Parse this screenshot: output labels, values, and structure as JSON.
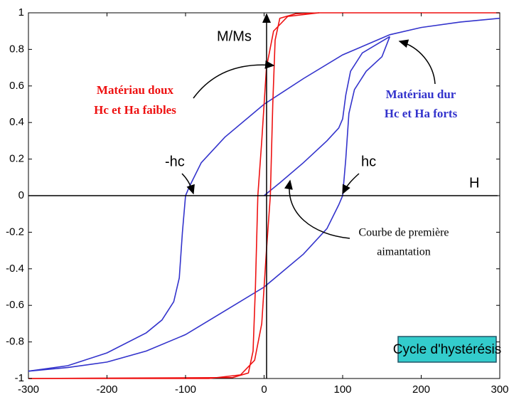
{
  "chart_data": {
    "type": "line",
    "xlim": [
      -300,
      300
    ],
    "ylim": [
      -1,
      1
    ],
    "xticks": [
      -300,
      -200,
      -100,
      0,
      100,
      200,
      300
    ],
    "yticks": [
      -1,
      -0.8,
      -0.6,
      -0.4,
      -0.2,
      0,
      0.2,
      0.4,
      0.6,
      0.8,
      1
    ],
    "series": [
      {
        "color": "#3333cc",
        "x": [
          300,
          250,
          200,
          160,
          100,
          50,
          0,
          -50,
          -80,
          -95,
          -100,
          -104,
          -108,
          -115,
          -130,
          -150,
          -200,
          -250,
          -300
        ],
        "values": [
          0.97,
          0.95,
          0.92,
          0.88,
          0.77,
          0.64,
          0.5,
          0.32,
          0.18,
          0.05,
          0,
          -0.2,
          -0.45,
          -0.58,
          -0.68,
          -0.75,
          -0.86,
          -0.93,
          -0.96
        ]
      },
      {
        "color": "#3333cc",
        "x": [
          -300,
          -250,
          -200,
          -150,
          -100,
          -50,
          0,
          50,
          80,
          95,
          100,
          104,
          108,
          115,
          130,
          150,
          160
        ],
        "values": [
          -0.96,
          -0.94,
          -0.91,
          -0.85,
          -0.76,
          -0.63,
          -0.5,
          -0.32,
          -0.18,
          -0.05,
          0,
          0.2,
          0.45,
          0.58,
          0.68,
          0.76,
          0.87
        ]
      },
      {
        "color": "#3333cc",
        "x": [
          0,
          20,
          50,
          80,
          95,
          100,
          104,
          110,
          125,
          160
        ],
        "values": [
          0,
          0.07,
          0.18,
          0.3,
          0.37,
          0.42,
          0.55,
          0.68,
          0.78,
          0.87
        ]
      },
      {
        "color": "#ee1111",
        "x": [
          300,
          70,
          30,
          12,
          3,
          -3,
          -8,
          -11,
          -14,
          -20,
          -40,
          -300
        ],
        "values": [
          1,
          1,
          0.98,
          0.9,
          0.7,
          0.3,
          0,
          -0.5,
          -0.85,
          -0.97,
          -0.995,
          -1
        ]
      },
      {
        "color": "#ee1111",
        "x": [
          -300,
          -70,
          -30,
          -12,
          -3,
          3,
          8,
          11,
          14,
          20,
          40,
          70
        ],
        "values": [
          -1,
          -1,
          -0.98,
          -0.9,
          -0.7,
          -0.3,
          0,
          0.5,
          0.85,
          0.97,
          0.995,
          1
        ]
      }
    ],
    "annotations": [
      "M/Ms",
      "H",
      "Matériau doux",
      "Hc et Ha faibles",
      "Matériau dur",
      "Hc et Ha forts",
      "-hc",
      "hc",
      "Courbe de première",
      "aimantation",
      "Cycle d'hystérésis"
    ]
  }
}
